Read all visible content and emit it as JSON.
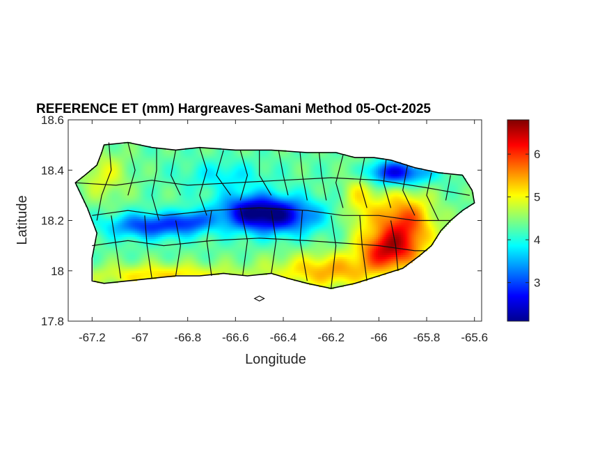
{
  "chart_data": {
    "type": "heatmap",
    "title": "REFERENCE ET (mm) Hargreaves-Samani Method  05-Oct-2025",
    "xlabel": "Longitude",
    "ylabel": "Latitude",
    "xlim": [
      -67.3,
      -65.57
    ],
    "ylim": [
      17.8,
      18.6
    ],
    "xticks": [
      -67.2,
      -67,
      -66.8,
      -66.6,
      -66.4,
      -66.2,
      -66,
      -65.8,
      -65.6
    ],
    "xtick_labels": [
      "-67.2",
      "-67",
      "-66.8",
      "-66.6",
      "-66.4",
      "-66.2",
      "-66",
      "-65.8",
      "-65.6"
    ],
    "yticks": [
      17.8,
      18,
      18.2,
      18.4,
      18.6
    ],
    "ytick_labels": [
      "17.8",
      "18",
      "18.2",
      "18.4",
      "18.6"
    ],
    "colorbar": {
      "colormap": "jet",
      "range": [
        2.1,
        6.8
      ],
      "ticks": [
        3,
        4,
        5,
        6
      ],
      "tick_labels": [
        "3",
        "4",
        "5",
        "6"
      ]
    },
    "outline": [
      [
        -67.15,
        18.5
      ],
      [
        -67.05,
        18.51
      ],
      [
        -66.95,
        18.49
      ],
      [
        -66.85,
        18.48
      ],
      [
        -66.75,
        18.49
      ],
      [
        -66.6,
        18.48
      ],
      [
        -66.45,
        18.48
      ],
      [
        -66.3,
        18.47
      ],
      [
        -66.18,
        18.47
      ],
      [
        -66.1,
        18.45
      ],
      [
        -66.02,
        18.45
      ],
      [
        -65.95,
        18.44
      ],
      [
        -65.85,
        18.41
      ],
      [
        -65.75,
        18.39
      ],
      [
        -65.65,
        18.38
      ],
      [
        -65.61,
        18.32
      ],
      [
        -65.6,
        18.27
      ],
      [
        -65.65,
        18.24
      ],
      [
        -65.7,
        18.2
      ],
      [
        -65.74,
        18.16
      ],
      [
        -65.78,
        18.1
      ],
      [
        -65.83,
        18.06
      ],
      [
        -65.9,
        18.01
      ],
      [
        -66.0,
        17.98
      ],
      [
        -66.1,
        17.95
      ],
      [
        -66.2,
        17.93
      ],
      [
        -66.3,
        17.95
      ],
      [
        -66.38,
        17.97
      ],
      [
        -66.45,
        17.99
      ],
      [
        -66.55,
        17.98
      ],
      [
        -66.65,
        17.99
      ],
      [
        -66.75,
        17.98
      ],
      [
        -66.85,
        17.98
      ],
      [
        -66.95,
        17.97
      ],
      [
        -67.05,
        17.96
      ],
      [
        -67.15,
        17.95
      ],
      [
        -67.2,
        17.96
      ],
      [
        -67.2,
        18.05
      ],
      [
        -67.18,
        18.15
      ],
      [
        -67.22,
        18.25
      ],
      [
        -67.27,
        18.35
      ],
      [
        -67.23,
        18.38
      ],
      [
        -67.18,
        18.42
      ],
      [
        -67.16,
        18.47
      ]
    ],
    "islet_outline": [
      [
        -66.52,
        17.89
      ],
      [
        -66.5,
        17.9
      ],
      [
        -66.48,
        17.89
      ],
      [
        -66.5,
        17.88
      ]
    ],
    "field_components": [
      {
        "lon": -66.42,
        "lat": 18.22,
        "sx": 0.12,
        "sy": 0.05,
        "amp": -1.7
      },
      {
        "lon": -66.55,
        "lat": 18.24,
        "sx": 0.1,
        "sy": 0.05,
        "amp": -1.2
      },
      {
        "lon": -66.95,
        "lat": 18.18,
        "sx": 0.13,
        "sy": 0.035,
        "amp": -1.4
      },
      {
        "lon": -66.78,
        "lat": 18.2,
        "sx": 0.06,
        "sy": 0.03,
        "amp": -0.8
      },
      {
        "lon": -65.93,
        "lat": 18.39,
        "sx": 0.1,
        "sy": 0.035,
        "amp": -1.7
      },
      {
        "lon": -66.65,
        "lat": 18.38,
        "sx": 0.12,
        "sy": 0.04,
        "amp": -0.5
      },
      {
        "lon": -65.9,
        "lat": 18.18,
        "sx": 0.09,
        "sy": 0.09,
        "amp": 1.7
      },
      {
        "lon": -65.97,
        "lat": 18.08,
        "sx": 0.08,
        "sy": 0.05,
        "amp": 1.4
      },
      {
        "lon": -66.2,
        "lat": 18.0,
        "sx": 0.17,
        "sy": 0.05,
        "amp": 1.1
      },
      {
        "lon": -66.9,
        "lat": 17.98,
        "sx": 0.22,
        "sy": 0.035,
        "amp": 0.9
      },
      {
        "lon": -67.15,
        "lat": 18.38,
        "sx": 0.07,
        "sy": 0.07,
        "amp": 0.6
      },
      {
        "lon": -66.08,
        "lat": 18.3,
        "sx": 0.05,
        "sy": 0.1,
        "amp": 0.7
      }
    ],
    "field_base": 4.3,
    "boundary_lines": [
      [
        [
          -67.13,
          18.51
        ],
        [
          -67.12,
          18.4
        ],
        [
          -67.16,
          18.3
        ],
        [
          -67.18,
          18.2
        ]
      ],
      [
        [
          -67.05,
          18.51
        ],
        [
          -67.02,
          18.4
        ],
        [
          -67.05,
          18.3
        ]
      ],
      [
        [
          -66.93,
          18.49
        ],
        [
          -66.93,
          18.4
        ],
        [
          -66.95,
          18.3
        ],
        [
          -66.92,
          18.2
        ]
      ],
      [
        [
          -66.85,
          18.48
        ],
        [
          -66.87,
          18.38
        ],
        [
          -66.83,
          18.3
        ]
      ],
      [
        [
          -66.75,
          18.49
        ],
        [
          -66.72,
          18.4
        ],
        [
          -66.75,
          18.3
        ],
        [
          -66.72,
          18.22
        ]
      ],
      [
        [
          -66.65,
          18.48
        ],
        [
          -66.68,
          18.38
        ],
        [
          -66.62,
          18.3
        ]
      ],
      [
        [
          -66.58,
          18.48
        ],
        [
          -66.55,
          18.38
        ],
        [
          -66.58,
          18.28
        ]
      ],
      [
        [
          -66.5,
          18.48
        ],
        [
          -66.5,
          18.38
        ],
        [
          -66.45,
          18.3
        ]
      ],
      [
        [
          -66.42,
          18.48
        ],
        [
          -66.4,
          18.38
        ],
        [
          -66.38,
          18.3
        ]
      ],
      [
        [
          -66.33,
          18.47
        ],
        [
          -66.32,
          18.38
        ],
        [
          -66.3,
          18.28
        ]
      ],
      [
        [
          -66.25,
          18.47
        ],
        [
          -66.24,
          18.38
        ],
        [
          -66.22,
          18.28
        ]
      ],
      [
        [
          -66.15,
          18.46
        ],
        [
          -66.18,
          18.35
        ],
        [
          -66.15,
          18.25
        ]
      ],
      [
        [
          -66.06,
          18.45
        ],
        [
          -66.08,
          18.35
        ],
        [
          -66.05,
          18.25
        ]
      ],
      [
        [
          -65.97,
          18.44
        ],
        [
          -65.98,
          18.35
        ],
        [
          -65.95,
          18.25
        ]
      ],
      [
        [
          -65.88,
          18.42
        ],
        [
          -65.9,
          18.32
        ],
        [
          -65.85,
          18.22
        ]
      ],
      [
        [
          -65.78,
          18.39
        ],
        [
          -65.8,
          18.3
        ],
        [
          -65.75,
          18.2
        ]
      ],
      [
        [
          -65.7,
          18.38
        ],
        [
          -65.72,
          18.28
        ]
      ],
      [
        [
          -67.27,
          18.35
        ],
        [
          -67.1,
          18.34
        ],
        [
          -66.95,
          18.36
        ],
        [
          -66.8,
          18.34
        ],
        [
          -66.6,
          18.35
        ],
        [
          -66.4,
          18.36
        ],
        [
          -66.2,
          18.37
        ],
        [
          -66.0,
          18.36
        ],
        [
          -65.8,
          18.33
        ],
        [
          -65.62,
          18.3
        ]
      ],
      [
        [
          -67.2,
          18.22
        ],
        [
          -67.05,
          18.24
        ],
        [
          -66.9,
          18.22
        ],
        [
          -66.7,
          18.24
        ],
        [
          -66.5,
          18.25
        ],
        [
          -66.3,
          18.24
        ],
        [
          -66.15,
          18.22
        ],
        [
          -66.0,
          18.22
        ],
        [
          -65.85,
          18.2
        ],
        [
          -65.7,
          18.2
        ]
      ],
      [
        [
          -67.2,
          18.1
        ],
        [
          -67.05,
          18.12
        ],
        [
          -66.9,
          18.1
        ],
        [
          -66.7,
          18.12
        ],
        [
          -66.5,
          18.13
        ],
        [
          -66.3,
          18.12
        ],
        [
          -66.15,
          18.11
        ],
        [
          -66.0,
          18.1
        ],
        [
          -65.85,
          18.08
        ],
        [
          -65.8,
          18.08
        ]
      ],
      [
        [
          -67.12,
          18.22
        ],
        [
          -67.1,
          18.1
        ],
        [
          -67.08,
          17.97
        ]
      ],
      [
        [
          -66.98,
          18.22
        ],
        [
          -66.97,
          18.1
        ],
        [
          -66.95,
          17.97
        ]
      ],
      [
        [
          -66.85,
          18.2
        ],
        [
          -66.83,
          18.1
        ],
        [
          -66.85,
          17.98
        ]
      ],
      [
        [
          -66.7,
          18.24
        ],
        [
          -66.72,
          18.12
        ],
        [
          -66.7,
          17.98
        ]
      ],
      [
        [
          -66.58,
          18.25
        ],
        [
          -66.55,
          18.12
        ],
        [
          -66.57,
          17.98
        ]
      ],
      [
        [
          -66.45,
          18.24
        ],
        [
          -66.43,
          18.12
        ],
        [
          -66.45,
          17.99
        ]
      ],
      [
        [
          -66.32,
          18.24
        ],
        [
          -66.33,
          18.12
        ],
        [
          -66.3,
          17.96
        ]
      ],
      [
        [
          -66.2,
          18.22
        ],
        [
          -66.18,
          18.1
        ],
        [
          -66.2,
          17.93
        ]
      ],
      [
        [
          -66.08,
          18.22
        ],
        [
          -66.07,
          18.1
        ],
        [
          -66.05,
          17.96
        ]
      ],
      [
        [
          -65.95,
          18.2
        ],
        [
          -65.93,
          18.1
        ],
        [
          -65.92,
          18.0
        ]
      ]
    ]
  }
}
